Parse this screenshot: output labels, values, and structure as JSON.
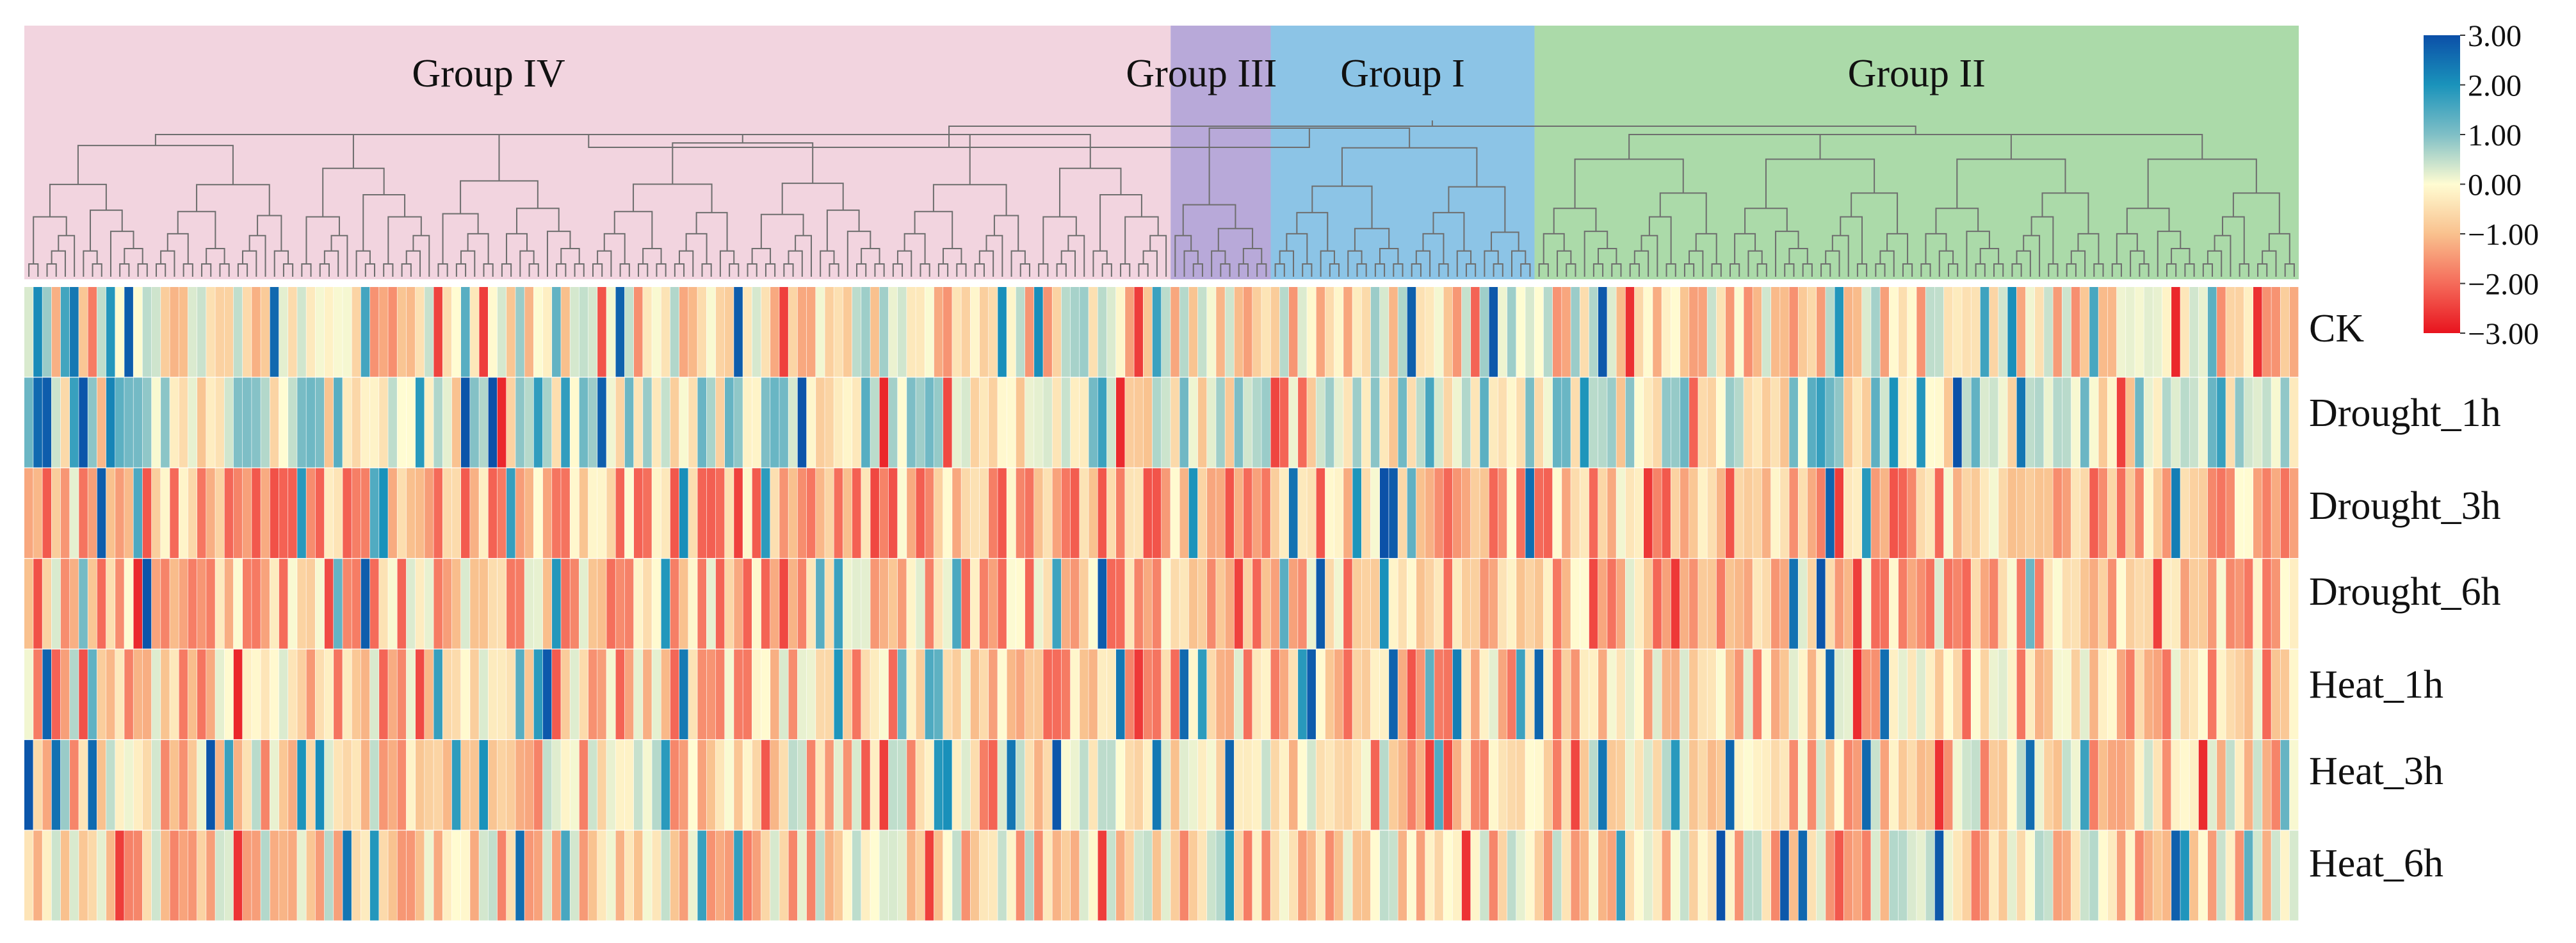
{
  "chart_data": {
    "type": "heatmap",
    "title": "",
    "rows": [
      "CK",
      "Drought_1h",
      "Drought_3h",
      "Drought_6h",
      "Heat_1h",
      "Heat_3h",
      "Heat_6h"
    ],
    "groups": [
      {
        "name": "Group IV",
        "columns": 126,
        "color": "#f2d4df"
      },
      {
        "name": "Group III",
        "columns": 11,
        "color": "#b8a9d9"
      },
      {
        "name": "Group I",
        "columns": 29,
        "color": "#8cc4e6"
      },
      {
        "name": "Group II",
        "columns": 84,
        "color": "#abdaa9"
      }
    ],
    "colorbar": {
      "min": -3.0,
      "max": 3.0,
      "ticks": [
        "3.00",
        "2.00",
        "1.00",
        "0.00",
        "−1.00",
        "−2.00",
        "−3.00"
      ],
      "colors": [
        "#0b4fa8",
        "#1a93bb",
        "#7fbfc6",
        "#fffcd2",
        "#f9c18e",
        "#f56b5a",
        "#e8131e"
      ]
    },
    "sample_values": {
      "CK": [
        0.3,
        2.1,
        0.8,
        -1.2,
        1.6,
        2.4,
        -0.9,
        -1.8,
        0.5,
        1.9
      ],
      "Drought_1h": [
        1.2,
        2.6,
        2.8,
        0.4,
        -0.6,
        1.7,
        2.9,
        0.9,
        -1.1,
        2.2
      ],
      "Drought_3h": [
        -1.3,
        -1.1,
        -2.2,
        -0.8,
        -1.5,
        0.2,
        -1.9,
        -1.4,
        2.8,
        -1.0
      ],
      "Drought_6h": [
        -1.0,
        -2.3,
        -0.7,
        0.3,
        -1.6,
        -1.2,
        1.1,
        -0.9,
        -2.0,
        -0.5
      ],
      "Heat_1h": [
        0.1,
        -1.8,
        2.7,
        -2.1,
        -1.4,
        0.6,
        -2.3,
        1.3,
        -0.8,
        -1.1
      ],
      "Heat_3h": [
        2.9,
        -0.6,
        -1.3,
        2.5,
        0.8,
        -1.7,
        -0.4,
        2.6,
        -1.0,
        0.5
      ],
      "Heat_6h": [
        -0.4,
        -1.2,
        -0.2,
        0.4,
        -1.0,
        0.3,
        -0.9,
        -0.6,
        0.2,
        -1.1
      ]
    }
  }
}
